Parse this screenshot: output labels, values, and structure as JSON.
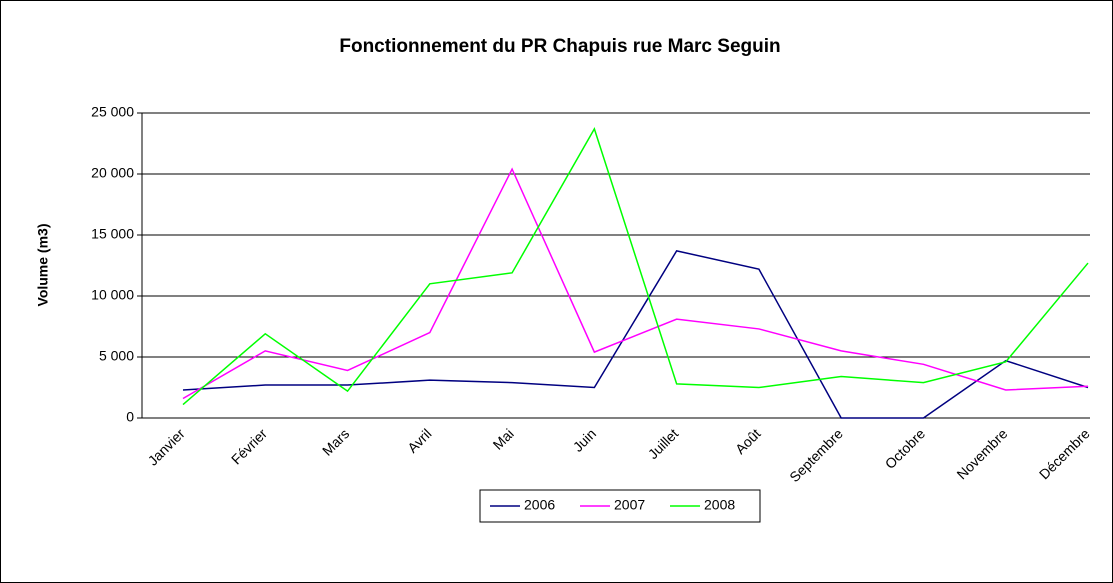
{
  "chart_data": {
    "type": "line",
    "title": "Fonctionnement du PR Chapuis rue Marc Seguin",
    "y_label": "Volume (m3)",
    "categories": [
      "Janvier",
      "Février",
      "Mars",
      "Avril",
      "Mai",
      "Juin",
      "Juillet",
      "Août",
      "Septembre",
      "Octobre",
      "Novembre",
      "Décembre"
    ],
    "series": [
      {
        "name": "2006",
        "color": "#000080",
        "values": [
          2300,
          2700,
          2700,
          3100,
          2900,
          2500,
          13700,
          12200,
          0,
          0,
          4700,
          2500
        ]
      },
      {
        "name": "2007",
        "color": "#ff00ff",
        "values": [
          1600,
          5500,
          3900,
          7000,
          20400,
          5400,
          8100,
          7300,
          5500,
          4400,
          2300,
          2600
        ]
      },
      {
        "name": "2008",
        "color": "#00ff00",
        "values": [
          1100,
          6900,
          2200,
          11000,
          11900,
          23700,
          2800,
          2500,
          3400,
          2900,
          4600,
          12700
        ]
      }
    ],
    "ylim": [
      0,
      25000
    ],
    "yticks": [
      0,
      {
        "value": 5000,
        "label": "5 000"
      },
      {
        "value": 10000,
        "label": "10 000"
      },
      {
        "value": 15000,
        "label": "15 000"
      },
      {
        "value": 20000,
        "label": "20 000"
      },
      {
        "value": 25000,
        "label": "25 000"
      }
    ],
    "grid": true,
    "legend": "bottom"
  }
}
